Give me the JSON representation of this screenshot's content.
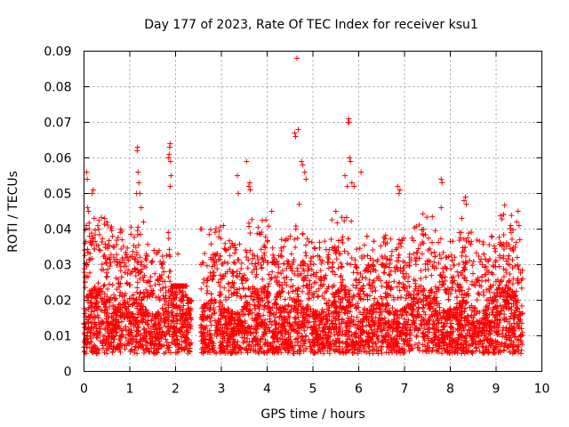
{
  "chart_data": {
    "type": "scatter",
    "title": "Day 177 of 2023, Rate Of TEC Index for receiver ksu1",
    "xlabel": "GPS time / hours",
    "ylabel": "ROTI / TECUs",
    "xlim": [
      0,
      10
    ],
    "ylim": [
      0,
      0.09
    ],
    "xticks": [
      "0",
      "1",
      "2",
      "3",
      "4",
      "5",
      "6",
      "7",
      "8",
      "9",
      "10"
    ],
    "yticks": [
      "0",
      "0.01",
      "0.02",
      "0.03",
      "0.04",
      "0.05",
      "0.06",
      "0.07",
      "0.08",
      "0.09"
    ],
    "grid": true,
    "marker": "+",
    "color": "#ff0000",
    "data_gaps_hours": [
      [
        2.35,
        2.55
      ]
    ],
    "time_range_hours": [
      0,
      9.58
    ],
    "typical_range": [
      0.005,
      0.02
    ],
    "series": [
      {
        "name": "ksu1",
        "points": [
          [
            0.02,
            0.036
          ],
          [
            0.05,
            0.041
          ],
          [
            0.06,
            0.056
          ],
          [
            0.07,
            0.054
          ],
          [
            0.08,
            0.046
          ],
          [
            0.1,
            0.045
          ],
          [
            0.12,
            0.038
          ],
          [
            0.18,
            0.05
          ],
          [
            0.2,
            0.051
          ],
          [
            0.22,
            0.043
          ],
          [
            0.3,
            0.041
          ],
          [
            0.45,
            0.043
          ],
          [
            0.5,
            0.042
          ],
          [
            0.62,
            0.038
          ],
          [
            0.8,
            0.04
          ],
          [
            0.83,
            0.037
          ],
          [
            1.15,
            0.05
          ],
          [
            1.16,
            0.062
          ],
          [
            1.17,
            0.063
          ],
          [
            1.18,
            0.056
          ],
          [
            1.2,
            0.053
          ],
          [
            1.22,
            0.05
          ],
          [
            1.25,
            0.046
          ],
          [
            1.3,
            0.042
          ],
          [
            1.85,
            0.06
          ],
          [
            1.86,
            0.061
          ],
          [
            1.87,
            0.063
          ],
          [
            1.88,
            0.064
          ],
          [
            1.89,
            0.059
          ],
          [
            1.9,
            0.055
          ],
          [
            1.88,
            0.052
          ],
          [
            1.84,
            0.039
          ],
          [
            2.05,
            0.033
          ],
          [
            2.55,
            0.04
          ],
          [
            2.57,
            0.04
          ],
          [
            3.05,
            0.041
          ],
          [
            3.35,
            0.055
          ],
          [
            3.37,
            0.05
          ],
          [
            3.55,
            0.059
          ],
          [
            3.6,
            0.052
          ],
          [
            3.62,
            0.053
          ],
          [
            3.63,
            0.051
          ],
          [
            4.1,
            0.045
          ],
          [
            4.6,
            0.067
          ],
          [
            4.62,
            0.066
          ],
          [
            4.65,
            0.088
          ],
          [
            4.68,
            0.068
          ],
          [
            4.7,
            0.047
          ],
          [
            4.75,
            0.059
          ],
          [
            4.78,
            0.058
          ],
          [
            4.82,
            0.056
          ],
          [
            4.85,
            0.054
          ],
          [
            5.5,
            0.045
          ],
          [
            5.7,
            0.055
          ],
          [
            5.75,
            0.052
          ],
          [
            5.77,
            0.07
          ],
          [
            5.78,
            0.071
          ],
          [
            5.79,
            0.07
          ],
          [
            5.8,
            0.06
          ],
          [
            5.82,
            0.059
          ],
          [
            5.85,
            0.053
          ],
          [
            5.9,
            0.052
          ],
          [
            6.05,
            0.056
          ],
          [
            6.85,
            0.052
          ],
          [
            6.88,
            0.05
          ],
          [
            6.9,
            0.051
          ],
          [
            7.8,
            0.054
          ],
          [
            7.82,
            0.053
          ],
          [
            7.8,
            0.046
          ],
          [
            8.3,
            0.048
          ],
          [
            8.33,
            0.049
          ],
          [
            8.35,
            0.047
          ],
          [
            8.25,
            0.043
          ],
          [
            8.2,
            0.039
          ],
          [
            8.9,
            0.038
          ],
          [
            9.48,
            0.045
          ],
          [
            9.45,
            0.042
          ],
          [
            9.5,
            0.041
          ],
          [
            9.52,
            0.037
          ]
        ]
      }
    ]
  }
}
